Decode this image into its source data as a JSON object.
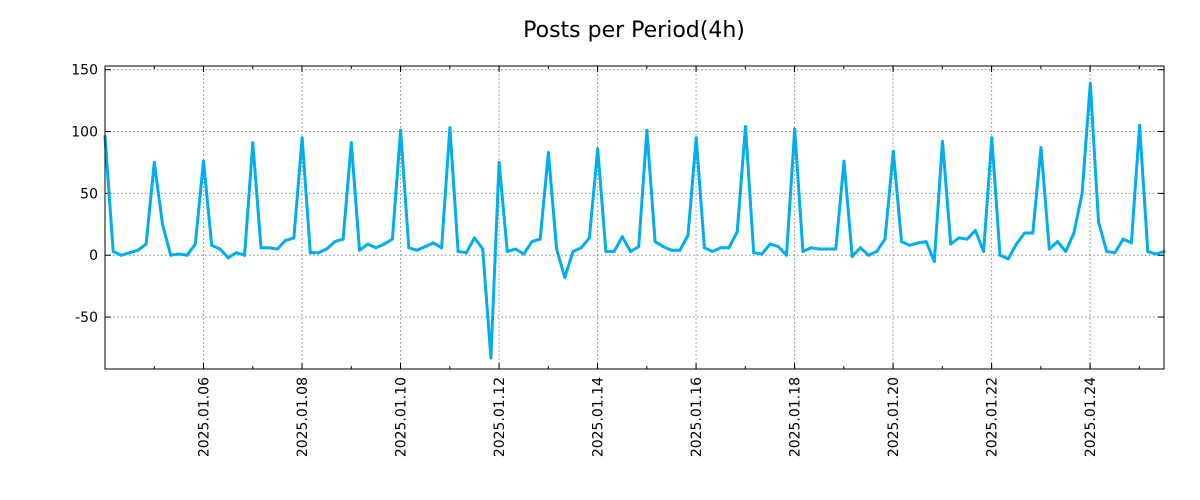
{
  "chart_data": {
    "type": "line",
    "title": "Posts per Period(4h)",
    "xlabel": "",
    "ylabel": "",
    "ylim": [
      -92,
      153
    ],
    "grid": true,
    "color": "#00aeef",
    "xlim": [
      0,
      21.5
    ],
    "y_ticks": [
      150,
      100,
      50,
      0,
      -50
    ],
    "y_tick_labels": [
      "150",
      "100",
      "50",
      "0",
      "-50"
    ],
    "x_ticks": [
      {
        "day": 2,
        "label": "2025.01.06"
      },
      {
        "day": 4,
        "label": "2025.01.08"
      },
      {
        "day": 6,
        "label": "2025.01.10"
      },
      {
        "day": 8,
        "label": "2025.01.12"
      },
      {
        "day": 10,
        "label": "2025.01.14"
      },
      {
        "day": 12,
        "label": "2025.01.16"
      },
      {
        "day": 14,
        "label": "2025.01.18"
      },
      {
        "day": 16,
        "label": "2025.01.20"
      },
      {
        "day": 18,
        "label": "2025.01.22"
      },
      {
        "day": 20,
        "label": "2025.01.24"
      }
    ],
    "series": [
      {
        "name": "posts",
        "x_step_days": 0.1667,
        "values": [
          96,
          3,
          0,
          2,
          4,
          9,
          75,
          25,
          0,
          1,
          0,
          9,
          76,
          8,
          5,
          -2,
          2,
          0,
          91,
          6,
          6,
          5,
          12,
          14,
          95,
          2,
          2,
          5,
          11,
          13,
          91,
          4,
          9,
          6,
          9,
          13,
          101,
          6,
          4,
          7,
          10,
          6,
          103,
          3,
          2,
          14,
          5,
          -83,
          75,
          3,
          5,
          1,
          11,
          13,
          83,
          5,
          -18,
          3,
          6,
          14,
          86,
          3,
          3,
          15,
          3,
          7,
          101,
          11,
          7,
          4,
          4,
          16,
          95,
          6,
          3,
          6,
          6,
          19,
          104,
          2,
          1,
          9,
          7,
          0,
          102,
          3,
          6,
          5,
          5,
          5,
          76,
          -1,
          6,
          0,
          3,
          13,
          84,
          11,
          8,
          10,
          11,
          -5,
          92,
          9,
          14,
          13,
          20,
          3,
          95,
          0,
          -3,
          9,
          18,
          18,
          87,
          5,
          11,
          3,
          18,
          50,
          139,
          27,
          3,
          2,
          13,
          10,
          105,
          3,
          1,
          3
        ]
      }
    ]
  }
}
